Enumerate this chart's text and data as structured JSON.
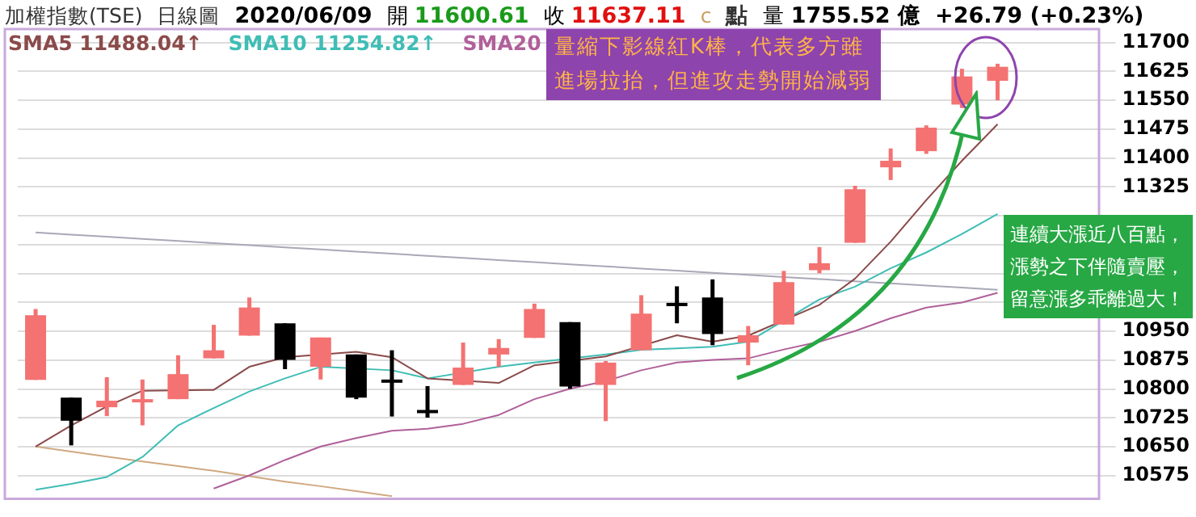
{
  "chart_data": {
    "type": "candlestick",
    "title": "加權指數(TSE)",
    "subtitle": "日線圖",
    "categories": [
      null,
      null,
      null,
      null,
      null,
      null,
      null,
      null,
      null,
      null,
      null,
      null,
      null,
      null,
      null,
      null,
      null,
      null,
      null,
      null,
      null,
      null,
      null,
      null,
      null,
      null,
      null,
      null
    ],
    "ohlc": [
      [
        10824,
        11008,
        10824,
        10992
      ],
      [
        10778,
        10778,
        10654,
        10718
      ],
      [
        10753,
        10831,
        10730,
        10770
      ],
      [
        10767,
        10825,
        10706,
        10774
      ],
      [
        10774,
        10888,
        10774,
        10839
      ],
      [
        10880,
        10967,
        10880,
        10901
      ],
      [
        10939,
        11038,
        10939,
        11012
      ],
      [
        10971,
        10971,
        10852,
        10876
      ],
      [
        10858,
        10934,
        10825,
        10934
      ],
      [
        10890,
        10890,
        10774,
        10778
      ],
      [
        10825,
        10901,
        10729,
        10818
      ],
      [
        10746,
        10808,
        10726,
        10742
      ],
      [
        10811,
        10921,
        10811,
        10856
      ],
      [
        10890,
        10930,
        10858,
        10907
      ],
      [
        10933,
        11022,
        10933,
        11008
      ],
      [
        10974,
        10974,
        10801,
        10807
      ],
      [
        10811,
        10873,
        10717,
        10869
      ],
      [
        10901,
        11044,
        10901,
        10996
      ],
      [
        11024,
        11067,
        10971,
        11020
      ],
      [
        11038,
        11085,
        10914,
        10943
      ],
      [
        10921,
        10964,
        10862,
        10940
      ],
      [
        10968,
        11107,
        10968,
        11078
      ],
      [
        11109,
        11169,
        11101,
        11127
      ],
      [
        11180,
        11328,
        11180,
        11319
      ],
      [
        11376,
        11425,
        11343,
        11393
      ],
      [
        11418,
        11485,
        11411,
        11479
      ],
      [
        11539,
        11632,
        11530,
        11612
      ],
      [
        11600.61,
        11645,
        11550,
        11637.11
      ]
    ],
    "colors": [
      "#f47272",
      "#000000",
      "#f47272",
      "#f47272",
      "#f47272",
      "#f47272",
      "#f47272",
      "#000000",
      "#f47272",
      "#000000",
      "#000000",
      "#000000",
      "#f47272",
      "#f47272",
      "#f47272",
      "#000000",
      "#f47272",
      "#f47272",
      "#000000",
      "#000000",
      "#f47272",
      "#f47272",
      "#f47272",
      "#f47272",
      "#f47272",
      "#f47272",
      "#f47272",
      "#f47272"
    ],
    "series": [
      {
        "type": "line",
        "name": "SMA5 11488.04↑",
        "color": "#8b4a4a",
        "values": [
          10651,
          10706,
          10755,
          10796,
          null,
          10798,
          10858,
          10883,
          null,
          10897,
          10883,
          10828,
          null,
          10816,
          10862,
          null,
          10885,
          null,
          10940,
          10923,
          10939,
          null,
          11019,
          11087,
          11183,
          11291,
          11393,
          11488.04
        ]
      },
      {
        "type": "line",
        "name": "SMA10 11254.82↑",
        "color": "#3fbdb5",
        "values": [
          10539,
          10554,
          10572,
          10624,
          10706,
          10751,
          10794,
          10828,
          10858,
          null,
          10849,
          10828,
          null,
          10858,
          10869,
          null,
          10890,
          10902,
          10906,
          10910,
          10923,
          null,
          11033,
          11066,
          11114,
          11155,
          11203,
          11254.82
        ]
      },
      {
        "type": "line",
        "name": "SMA20",
        "color": "#b0609a",
        "values": [
          null,
          null,
          null,
          null,
          null,
          10542,
          10576,
          10616,
          10651,
          10673,
          10692,
          10697,
          10710,
          10733,
          10774,
          10801,
          10821,
          10849,
          10869,
          10876,
          10880,
          10903,
          10923,
          10951,
          10984,
          11012,
          11025,
          11050
        ]
      },
      {
        "type": "line",
        "color": "#a8a8b8",
        "values": [
          11207,
          11201,
          11196,
          11190,
          11185,
          11179,
          11174,
          11168,
          11163,
          11157,
          11152,
          11146,
          11141,
          11135,
          11130,
          11124,
          11119,
          11113,
          11108,
          11102,
          11097,
          11091,
          11086,
          11080,
          11075,
          11069,
          11064,
          11058
        ]
      },
      {
        "type": "line",
        "color": "#d0a880",
        "values": [
          10651,
          10638,
          10625,
          10612,
          10600,
          10588,
          10574,
          10560,
          10548,
          10535,
          10522,
          null,
          null,
          null,
          null,
          null,
          null,
          null,
          null,
          null,
          null,
          null,
          null,
          null,
          null,
          null,
          null,
          null
        ]
      }
    ],
    "ylim": [
      10515,
      11735
    ],
    "yticks": [
      10575,
      10650,
      10725,
      10800,
      10875,
      10950,
      {
        "value": 11025,
        "label": null
      },
      {
        "value": 11100,
        "label": null
      },
      {
        "value": 11175,
        "label": null
      },
      {
        "value": 11250,
        "label": null
      },
      11325,
      11400,
      11475,
      11550,
      11625,
      11700
    ],
    "grid": "y",
    "legend": "top left",
    "tick_labels": "y",
    "annotations": [
      "2020/06/09",
      "開 11600.61",
      "收 11637.11",
      "c",
      "點",
      "量 1755.52 億",
      "+26.79 (+0.23%)",
      "量縮下影線紅K棒，代表多方雖進場拉抬，但進攻走勢開始減弱",
      "連續大漲近八百點，漲勢之下伴隨賣壓，留意漲多乖離過大！"
    ]
  }
}
